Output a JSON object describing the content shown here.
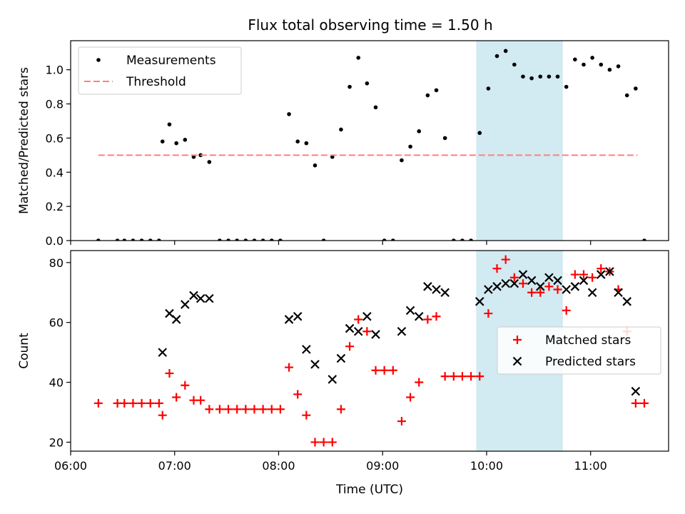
{
  "chart_data": [
    {
      "type": "scatter",
      "title": "Flux total observing time = 1.50 h",
      "xlabel": "",
      "ylabel": "Matched/Predicted stars",
      "xlim": [
        "06:00",
        "11:45"
      ],
      "ylim": [
        0,
        1.17
      ],
      "y_ticks": [
        "0.0",
        "0.2",
        "0.4",
        "0.6",
        "0.8",
        "1.0"
      ],
      "x_ticks_shown": false,
      "highlight_span": {
        "x": [
          "09:54",
          "10:44"
        ],
        "color": "#add8e6"
      },
      "legend_position": "upper left",
      "series": [
        {
          "name": "Measurements",
          "style": "dot",
          "color": "#000000",
          "points": [
            [
              "06:16",
              0
            ],
            [
              "06:27",
              0
            ],
            [
              "06:31",
              0
            ],
            [
              "06:36",
              0
            ],
            [
              "06:41",
              0
            ],
            [
              "06:46",
              0
            ],
            [
              "06:51",
              0
            ],
            [
              "06:53",
              0.58
            ],
            [
              "06:57",
              0.68
            ],
            [
              "07:01",
              0.57
            ],
            [
              "07:06",
              0.59
            ],
            [
              "07:11",
              0.49
            ],
            [
              "07:15",
              0.5
            ],
            [
              "07:20",
              0.46
            ],
            [
              "07:26",
              0
            ],
            [
              "07:31",
              0
            ],
            [
              "07:36",
              0
            ],
            [
              "07:41",
              0
            ],
            [
              "07:46",
              0
            ],
            [
              "07:51",
              0
            ],
            [
              "07:56",
              0
            ],
            [
              "08:01",
              0
            ],
            [
              "08:06",
              0.74
            ],
            [
              "08:11",
              0.58
            ],
            [
              "08:16",
              0.57
            ],
            [
              "08:21",
              0.44
            ],
            [
              "08:26",
              0
            ],
            [
              "08:31",
              0.49
            ],
            [
              "08:36",
              0.65
            ],
            [
              "08:41",
              0.9
            ],
            [
              "08:46",
              1.07
            ],
            [
              "08:51",
              0.92
            ],
            [
              "08:56",
              0.78
            ],
            [
              "09:01",
              0
            ],
            [
              "09:06",
              0
            ],
            [
              "09:11",
              0.47
            ],
            [
              "09:16",
              0.55
            ],
            [
              "09:21",
              0.64
            ],
            [
              "09:26",
              0.85
            ],
            [
              "09:31",
              0.88
            ],
            [
              "09:36",
              0.6
            ],
            [
              "09:41",
              0
            ],
            [
              "09:46",
              0
            ],
            [
              "09:51",
              0
            ],
            [
              "09:56",
              0.63
            ],
            [
              "10:01",
              0.89
            ],
            [
              "10:06",
              1.08
            ],
            [
              "10:11",
              1.11
            ],
            [
              "10:16",
              1.03
            ],
            [
              "10:21",
              0.96
            ],
            [
              "10:26",
              0.95
            ],
            [
              "10:31",
              0.96
            ],
            [
              "10:36",
              0.96
            ],
            [
              "10:41",
              0.96
            ],
            [
              "10:46",
              0.9
            ],
            [
              "10:51",
              1.06
            ],
            [
              "10:56",
              1.03
            ],
            [
              "11:01",
              1.07
            ],
            [
              "11:06",
              1.03
            ],
            [
              "11:11",
              1.0
            ],
            [
              "11:16",
              1.02
            ],
            [
              "11:21",
              0.85
            ],
            [
              "11:26",
              0.89
            ],
            [
              "11:31",
              0
            ]
          ]
        },
        {
          "name": "Threshold",
          "style": "dashed-line",
          "color": "#ff7f7f",
          "points": [
            [
              "06:16",
              0.5
            ],
            [
              "11:27",
              0.5
            ]
          ]
        }
      ]
    },
    {
      "type": "scatter",
      "title": "",
      "xlabel": "Time (UTC)",
      "ylabel": "Count",
      "xlim": [
        "06:00",
        "11:45"
      ],
      "ylim": [
        17,
        84
      ],
      "y_ticks": [
        "20",
        "40",
        "60",
        "80"
      ],
      "x_ticks": [
        "06:00",
        "07:00",
        "08:00",
        "09:00",
        "10:00",
        "11:00"
      ],
      "highlight_span": {
        "x": [
          "09:54",
          "10:44"
        ],
        "color": "#add8e6"
      },
      "legend_position": "center right",
      "series": [
        {
          "name": "Matched stars",
          "style": "plus",
          "color": "#ff0000",
          "points": [
            [
              "06:16",
              33
            ],
            [
              "06:27",
              33
            ],
            [
              "06:31",
              33
            ],
            [
              "06:36",
              33
            ],
            [
              "06:41",
              33
            ],
            [
              "06:46",
              33
            ],
            [
              "06:51",
              33
            ],
            [
              "06:53",
              29
            ],
            [
              "06:57",
              43
            ],
            [
              "07:01",
              35
            ],
            [
              "07:06",
              39
            ],
            [
              "07:11",
              34
            ],
            [
              "07:15",
              34
            ],
            [
              "07:20",
              31
            ],
            [
              "07:26",
              31
            ],
            [
              "07:31",
              31
            ],
            [
              "07:36",
              31
            ],
            [
              "07:41",
              31
            ],
            [
              "07:46",
              31
            ],
            [
              "07:51",
              31
            ],
            [
              "07:56",
              31
            ],
            [
              "08:01",
              31
            ],
            [
              "08:06",
              45
            ],
            [
              "08:11",
              36
            ],
            [
              "08:16",
              29
            ],
            [
              "08:21",
              20
            ],
            [
              "08:26",
              20
            ],
            [
              "08:31",
              20
            ],
            [
              "08:36",
              31
            ],
            [
              "08:41",
              52
            ],
            [
              "08:46",
              61
            ],
            [
              "08:51",
              57
            ],
            [
              "08:56",
              44
            ],
            [
              "09:01",
              44
            ],
            [
              "09:06",
              44
            ],
            [
              "09:11",
              27
            ],
            [
              "09:16",
              35
            ],
            [
              "09:21",
              40
            ],
            [
              "09:26",
              61
            ],
            [
              "09:31",
              62
            ],
            [
              "09:36",
              42
            ],
            [
              "09:41",
              42
            ],
            [
              "09:46",
              42
            ],
            [
              "09:51",
              42
            ],
            [
              "09:56",
              42
            ],
            [
              "10:01",
              63
            ],
            [
              "10:06",
              78
            ],
            [
              "10:11",
              81
            ],
            [
              "10:16",
              75
            ],
            [
              "10:21",
              73
            ],
            [
              "10:26",
              70
            ],
            [
              "10:31",
              70
            ],
            [
              "10:36",
              72
            ],
            [
              "10:41",
              71
            ],
            [
              "10:46",
              64
            ],
            [
              "10:51",
              76
            ],
            [
              "10:56",
              76
            ],
            [
              "11:01",
              75
            ],
            [
              "11:06",
              78
            ],
            [
              "11:11",
              77
            ],
            [
              "11:16",
              71
            ],
            [
              "11:21",
              57
            ],
            [
              "11:26",
              33
            ],
            [
              "11:31",
              33
            ]
          ]
        },
        {
          "name": "Predicted stars",
          "style": "x",
          "color": "#000000",
          "points": [
            [
              "06:53",
              50
            ],
            [
              "06:57",
              63
            ],
            [
              "07:01",
              61
            ],
            [
              "07:06",
              66
            ],
            [
              "07:11",
              69
            ],
            [
              "07:15",
              68
            ],
            [
              "07:20",
              68
            ],
            [
              "08:06",
              61
            ],
            [
              "08:11",
              62
            ],
            [
              "08:16",
              51
            ],
            [
              "08:21",
              46
            ],
            [
              "08:31",
              41
            ],
            [
              "08:36",
              48
            ],
            [
              "08:41",
              58
            ],
            [
              "08:46",
              57
            ],
            [
              "08:51",
              62
            ],
            [
              "08:56",
              56
            ],
            [
              "09:11",
              57
            ],
            [
              "09:16",
              64
            ],
            [
              "09:21",
              62
            ],
            [
              "09:26",
              72
            ],
            [
              "09:31",
              71
            ],
            [
              "09:36",
              70
            ],
            [
              "09:56",
              67
            ],
            [
              "10:01",
              71
            ],
            [
              "10:06",
              72
            ],
            [
              "10:11",
              73
            ],
            [
              "10:16",
              73
            ],
            [
              "10:21",
              76
            ],
            [
              "10:26",
              74
            ],
            [
              "10:31",
              72
            ],
            [
              "10:36",
              75
            ],
            [
              "10:41",
              74
            ],
            [
              "10:46",
              71
            ],
            [
              "10:51",
              72
            ],
            [
              "10:56",
              74
            ],
            [
              "11:01",
              70
            ],
            [
              "11:06",
              76
            ],
            [
              "11:11",
              77
            ],
            [
              "11:16",
              70
            ],
            [
              "11:21",
              67
            ],
            [
              "11:26",
              37
            ]
          ]
        }
      ]
    }
  ]
}
